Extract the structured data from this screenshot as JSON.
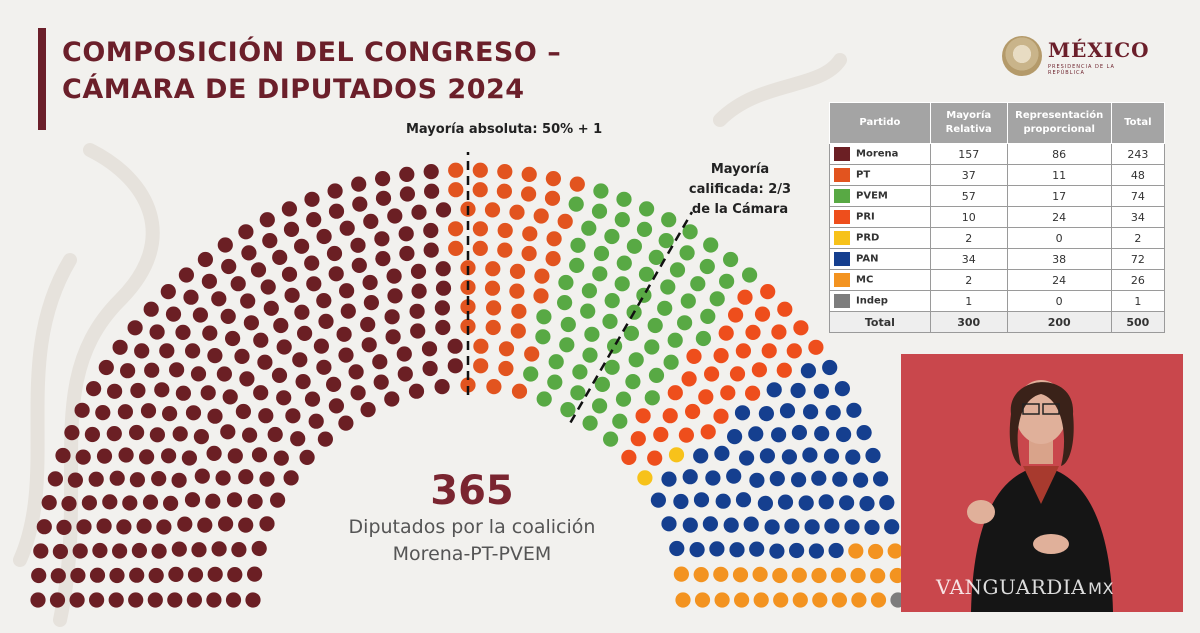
{
  "header": {
    "title_line1": "COMPOSICIÓN DEL CONGRESO –",
    "title_line2": "CÁMARA DE DIPUTADOS 2024"
  },
  "logo": {
    "text": "MÉXICO",
    "subtext": "PRESIDENCIA DE LA REPÚBLICA"
  },
  "annotations": {
    "absolute_majority": "Mayoría absoluta: 50% + 1",
    "qualified_majority_line1": "Mayoría",
    "qualified_majority_line2": "calificada: 2/3",
    "qualified_majority_line3": "de la Cámara"
  },
  "summary": {
    "number": "365",
    "label_line1": "Diputados por la coalición",
    "label_line2": "Morena-PT-PVEM"
  },
  "table": {
    "headers": [
      "Partido",
      "Mayoría Relativa",
      "Representación proporcional",
      "Total"
    ],
    "rows": [
      {
        "party": "Morena",
        "color": "#6b1f24",
        "relativa": "157",
        "proporcional": "86",
        "total": "243"
      },
      {
        "party": "PT",
        "color": "#e2541f",
        "relativa": "37",
        "proporcional": "11",
        "total": "48"
      },
      {
        "party": "PVEM",
        "color": "#58a944",
        "relativa": "57",
        "proporcional": "17",
        "total": "74"
      },
      {
        "party": "PRI",
        "color": "#ee4e1c",
        "relativa": "10",
        "proporcional": "24",
        "total": "34"
      },
      {
        "party": "PRD",
        "color": "#f7c21a",
        "relativa": "2",
        "proporcional": "0",
        "total": "2"
      },
      {
        "party": "PAN",
        "color": "#153f8f",
        "relativa": "34",
        "proporcional": "38",
        "total": "72"
      },
      {
        "party": "MC",
        "color": "#f39320",
        "relativa": "2",
        "proporcional": "24",
        "total": "26"
      },
      {
        "party": "Indep",
        "color": "#7d7d7d",
        "relativa": "1",
        "proporcional": "0",
        "total": "1"
      }
    ],
    "total_row": {
      "label": "Total",
      "relativa": "300",
      "proporcional": "200",
      "total": "500"
    }
  },
  "chart_data": {
    "type": "parliament",
    "total_seats": 500,
    "series": [
      {
        "name": "Morena",
        "value": 243,
        "color": "#6b1f24"
      },
      {
        "name": "PT",
        "value": 48,
        "color": "#e2541f"
      },
      {
        "name": "PVEM",
        "value": 74,
        "color": "#58a944"
      },
      {
        "name": "PRI",
        "value": 34,
        "color": "#ee4e1c"
      },
      {
        "name": "PRD",
        "value": 2,
        "color": "#f7c21a"
      },
      {
        "name": "PAN",
        "value": 72,
        "color": "#153f8f"
      },
      {
        "name": "MC",
        "value": 26,
        "color": "#f39320"
      },
      {
        "name": "Indep",
        "value": 1,
        "color": "#7d7d7d"
      }
    ],
    "thresholds": [
      {
        "label": "Mayoría absoluta: 50% + 1",
        "fraction": 0.5
      },
      {
        "label": "Mayoría calificada: 2/3 de la Cámara",
        "fraction": 0.6667
      }
    ]
  },
  "watermark": {
    "text": "VANGUARDIA",
    "suffix": "MX"
  }
}
